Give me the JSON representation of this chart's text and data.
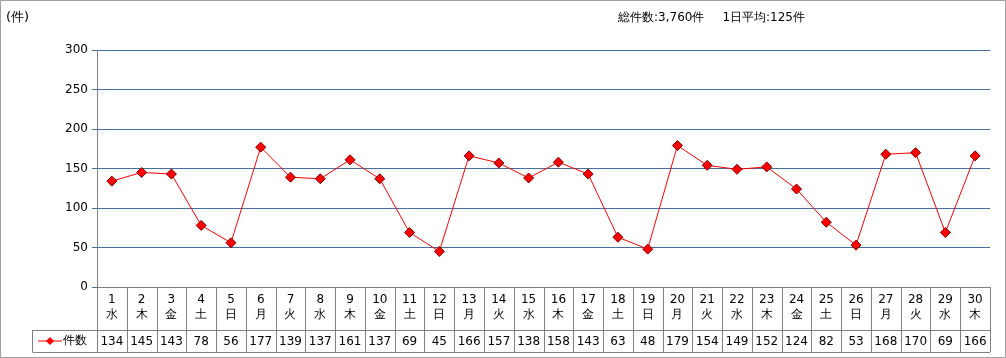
{
  "chart_data": {
    "type": "line",
    "ylabel": "(件)",
    "annotations": [
      "総件数:3,760件",
      "1日平均:125件"
    ],
    "categories": [
      "1\n水",
      "2\n木",
      "3\n金",
      "4\n土",
      "5\n日",
      "6\n月",
      "7\n火",
      "8\n水",
      "9\n木",
      "10\n金",
      "11\n土",
      "12\n日",
      "13\n月",
      "14\n火",
      "15\n水",
      "16\n木",
      "17\n金",
      "18\n土",
      "19\n日",
      "20\n月",
      "21\n火",
      "22\n水",
      "23\n木",
      "24\n金",
      "25\n土",
      "26\n日",
      "27\n月",
      "28\n火",
      "29\n水",
      "30\n木"
    ],
    "series": [
      {
        "name": "件数",
        "color": "#ff0000",
        "values": [
          134,
          145,
          143,
          78,
          56,
          177,
          139,
          137,
          161,
          137,
          69,
          45,
          166,
          157,
          138,
          158,
          143,
          63,
          48,
          179,
          154,
          149,
          152,
          124,
          82,
          53,
          168,
          170,
          69,
          166
        ]
      }
    ],
    "ylim": [
      0,
      300
    ],
    "yticks": [
      0,
      50,
      100,
      150,
      200,
      250,
      300
    ],
    "grid": "y",
    "legend": "bottom",
    "marker": "diamond",
    "line_style": "solid",
    "data_labels": true
  }
}
